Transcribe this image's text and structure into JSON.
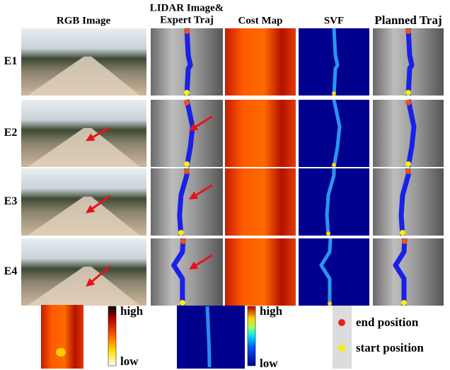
{
  "header": {
    "columns": [
      "RGB Image",
      "LIDAR Image&",
      "Expert Traj",
      "Cost Map",
      "SVF",
      "Planned Traj"
    ]
  },
  "rows": [
    "E1",
    "E2",
    "E3",
    "E4"
  ],
  "legend": {
    "cost_high": "high",
    "cost_low": "low",
    "svf_high": "high",
    "svf_low": "low",
    "end": "end position",
    "start": "start position"
  }
}
